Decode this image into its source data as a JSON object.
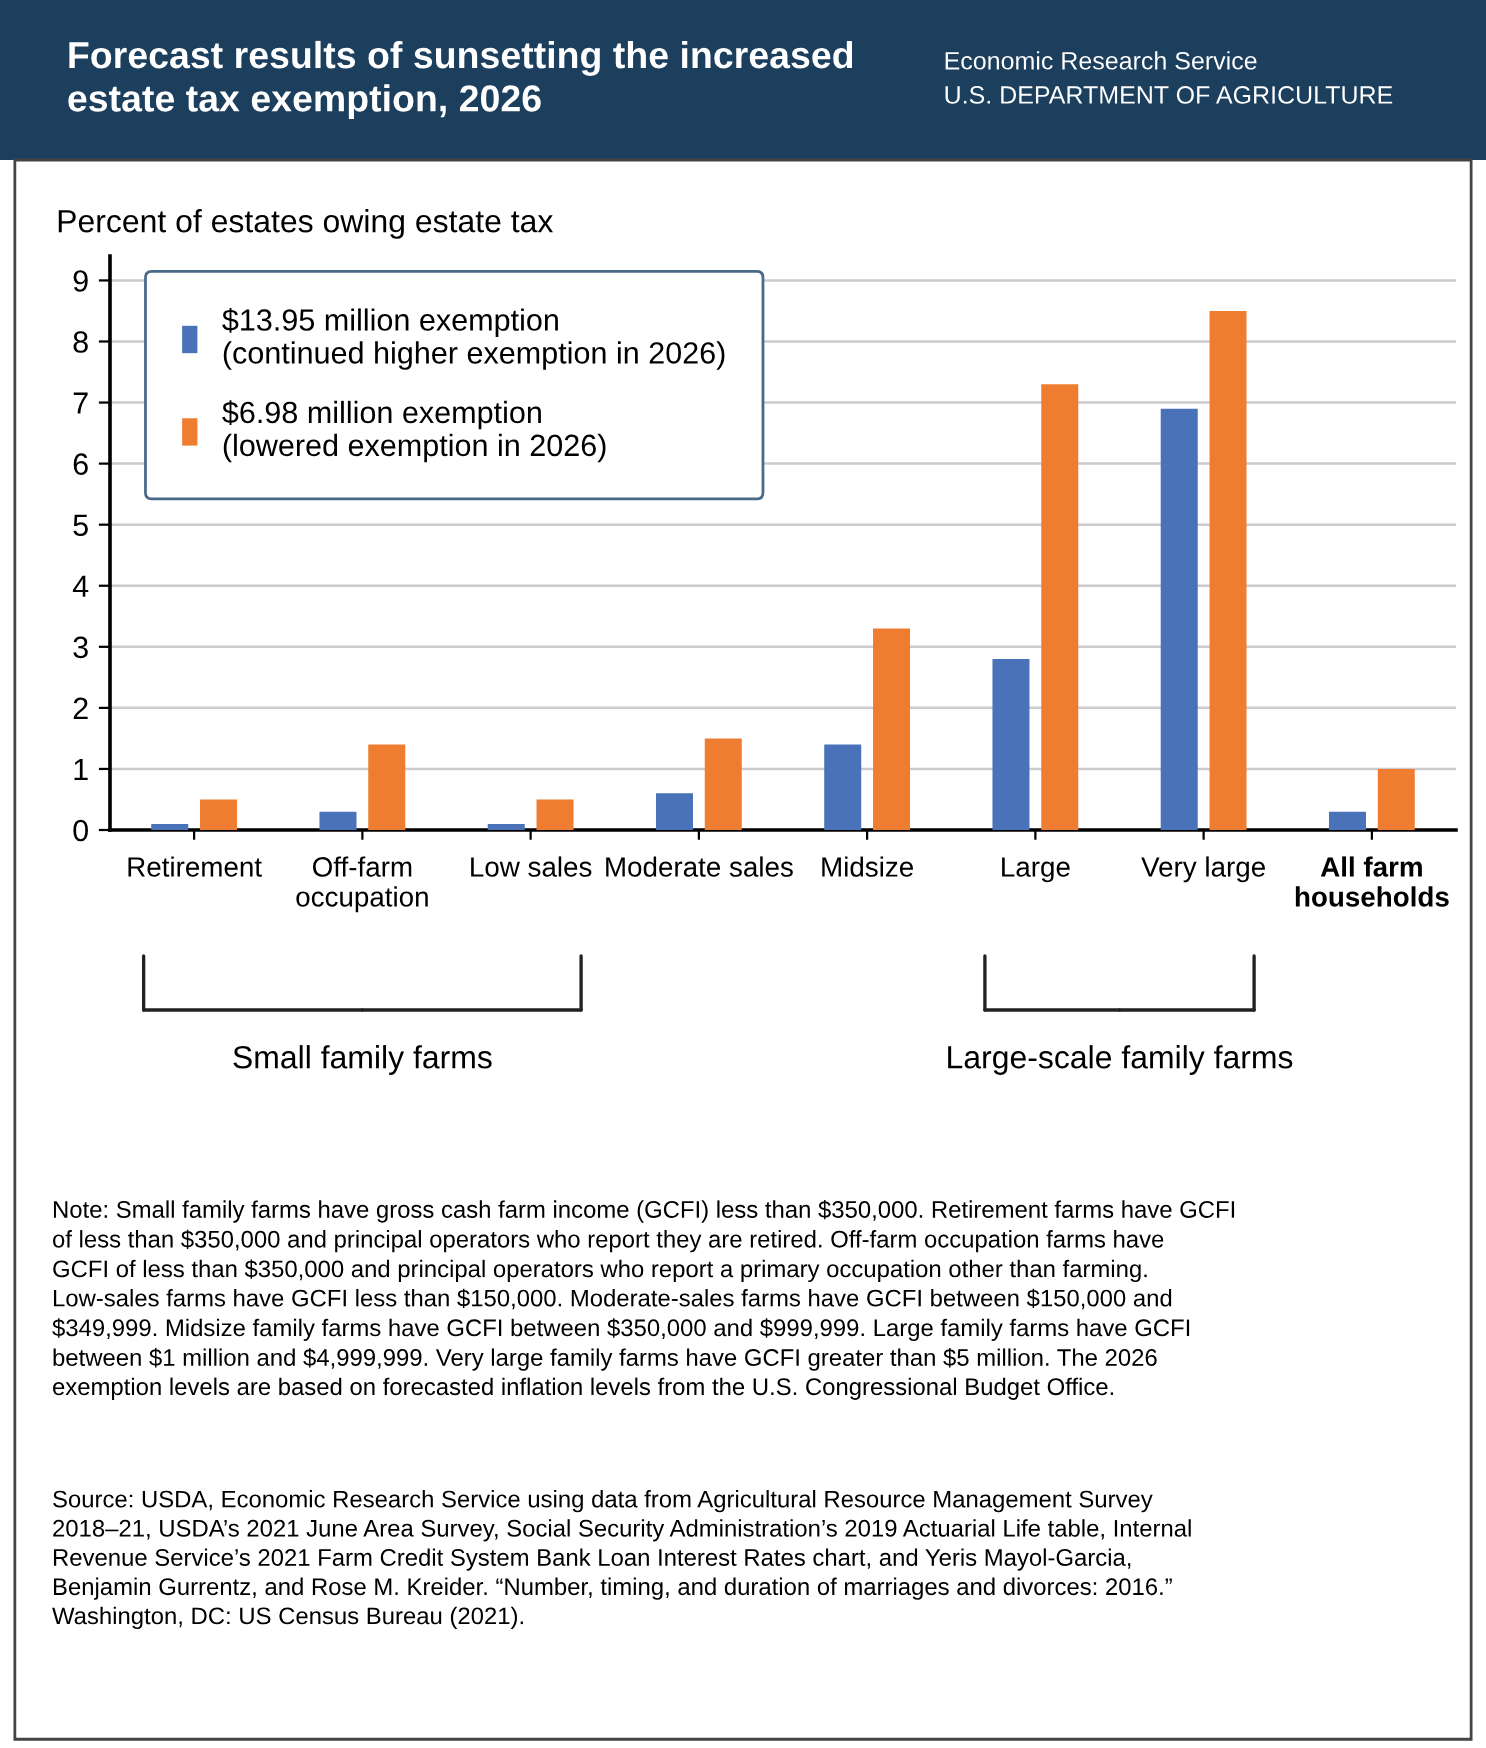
{
  "chart_data": {
    "type": "bar",
    "title": "Forecast results of sunsetting the increased\nestate tax exemption, 2026",
    "subtitle": "Economic Research Service\nU.S. DEPARTMENT OF AGRICULTURE",
    "ylabel": "Percent of estates owing estate tax",
    "categories": [
      "Retirement",
      "Off-farm\noccupation",
      "Low sales",
      "Moderate sales",
      "Midsize",
      "Large",
      "Very large",
      "All farm\nhouseholds"
    ],
    "series": [
      {
        "name": "$13.95 million exemption\n(continued higher exemption in 2026)",
        "color": "#4a72b8",
        "values": [
          0.1,
          0.3,
          0.1,
          0.6,
          1.4,
          2.8,
          6.9,
          0.3
        ]
      },
      {
        "name": "$6.98 million exemption\n(lowered exemption in 2026)",
        "color": "#ee7d31",
        "values": [
          0.5,
          1.4,
          0.5,
          1.5,
          3.3,
          7.3,
          8.5,
          1.0
        ]
      }
    ],
    "ylim": [
      0,
      9.4
    ],
    "yticks": [
      0,
      1,
      2,
      3,
      4,
      5,
      6,
      7,
      8,
      9
    ],
    "grid": "y",
    "legend": "top left",
    "annotations": [
      "Small family farms",
      "Large-scale family farms",
      "Note: Small family farms have gross cash farm income (GCFI) less than $350,000. Retirement farms have GCFI\nof less than $350,000 and principal operators who report they are retired. Off-farm occupation farms have\nGCFI of less than $350,000 and principal operators who report a primary occupation other than farming.\nLow-sales farms have GCFI less than $150,000. Moderate-sales farms have GCFI between $150,000 and\n$349,999. Midsize family farms have GCFI between $350,000 and $999,999. Large family farms have GCFI\nbetween $1 million and $4,999,999. Very large family farms have GCFI greater than $5 million. The 2026\nexemption levels are based on forecasted inflation levels from the U.S. Congressional Budget Office.",
      "Source: USDA, Economic Research Service using data from Agricultural Resource Management Survey\n2018–21, USDA’s 2021 June Area Survey, Social Security Administration’s 2019 Actuarial Life table, Internal\nRevenue Service’s 2021 Farm Credit System Bank Loan Interest Rates chart, and Yeris Mayol-Garcia,\nBenjamin Gurrentz, and Rose M. Kreider. “Number, timing, and duration of marriages and divorces: 2016.”\nWashington, DC: US Census Bureau (2021)."
    ]
  }
}
